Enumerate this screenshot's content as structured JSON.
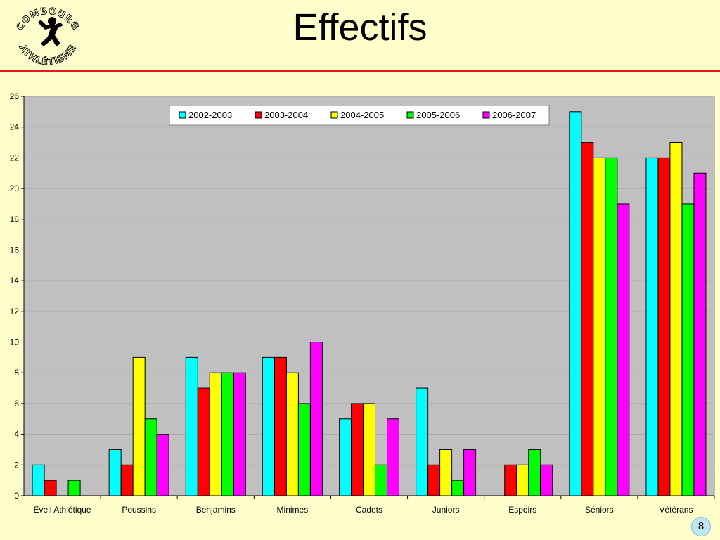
{
  "slide": {
    "title": "Effectifs",
    "page_number": "8",
    "logo_text_top": "COMBOURG",
    "logo_text_bottom": "ATHLÉTISME"
  },
  "colors": {
    "background": "#ffffcc",
    "title_rule": "#e31b1b",
    "plot_area": "#c0c0c0"
  },
  "chart_data": {
    "type": "bar",
    "title": "",
    "xlabel": "",
    "ylabel": "",
    "ylim": [
      0,
      26
    ],
    "yticks": [
      0,
      2,
      4,
      6,
      8,
      10,
      12,
      14,
      16,
      18,
      20,
      22,
      24,
      26
    ],
    "grid": true,
    "legend_position": "top-center",
    "categories": [
      "Éveil Athlétique",
      "Poussins",
      "Benjamins",
      "Minimes",
      "Cadets",
      "Juniors",
      "Espoirs",
      "Séniors",
      "Vétérans"
    ],
    "series": [
      {
        "name": "2002-2003",
        "color": "#00ffff",
        "values": [
          2,
          3,
          9,
          9,
          5,
          7,
          0,
          25,
          22
        ]
      },
      {
        "name": "2003-2004",
        "color": "#ff0000",
        "values": [
          1,
          2,
          7,
          9,
          6,
          2,
          2,
          23,
          22
        ]
      },
      {
        "name": "2004-2005",
        "color": "#ffff00",
        "values": [
          0,
          9,
          8,
          8,
          6,
          3,
          2,
          22,
          23
        ]
      },
      {
        "name": "2005-2006",
        "color": "#00ff00",
        "values": [
          1,
          5,
          8,
          6,
          2,
          1,
          3,
          22,
          19
        ]
      },
      {
        "name": "2006-2007",
        "color": "#ff00ff",
        "values": [
          0,
          4,
          8,
          10,
          5,
          3,
          2,
          19,
          21
        ]
      }
    ]
  }
}
